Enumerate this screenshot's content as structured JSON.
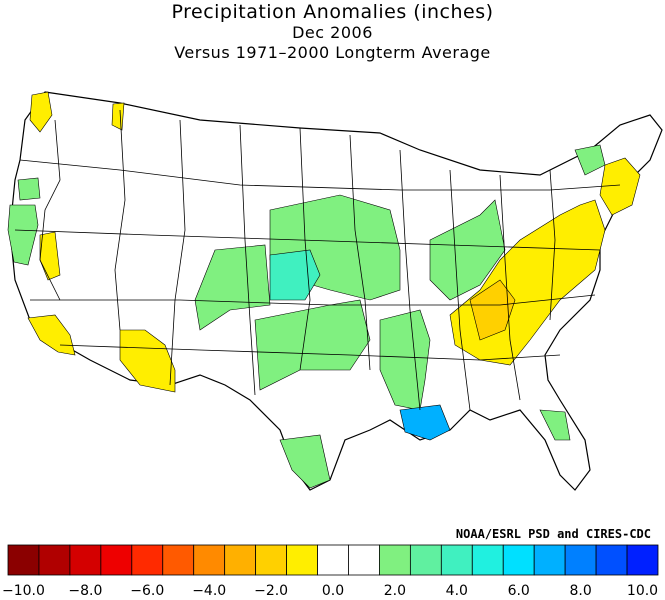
{
  "title": {
    "line1": "Precipitation Anomalies (inches)",
    "line2": "Dec 2006",
    "line3": "Versus 1971–2000 Longterm Average"
  },
  "credit": "NOAA/ESRL PSD and CIRES-CDC",
  "legend": {
    "colors": [
      "#8b0000",
      "#b00000",
      "#d40000",
      "#ee0000",
      "#ff2a00",
      "#ff5a00",
      "#ff8a00",
      "#ffb000",
      "#ffd000",
      "#ffee00",
      "#ffffff",
      "#ffffff",
      "#80f080",
      "#60f0a0",
      "#40f0c0",
      "#20f0e0",
      "#00e0ff",
      "#00b0ff",
      "#0080ff",
      "#0050ff",
      "#0020ff"
    ],
    "ticks": [
      "−10.0",
      "−8.0",
      "−6.0",
      "−4.0",
      "−2.0",
      "0.0",
      "2.0",
      "4.0",
      "6.0",
      "8.0",
      "10.0"
    ]
  },
  "anomaly_regions": [
    {
      "region": "Northwest Washington",
      "class": "dry"
    },
    {
      "region": "Central California coast",
      "class": "dry"
    },
    {
      "region": "Southern California",
      "class": "dry"
    },
    {
      "region": "Southern Arizona",
      "class": "dry"
    },
    {
      "region": "Appalachians / Mid-Atlantic",
      "class": "dry"
    },
    {
      "region": "Tennessee Valley",
      "class": "dry"
    },
    {
      "region": "New England coast",
      "class": "dry"
    },
    {
      "region": "Northern California coast",
      "class": "wet"
    },
    {
      "region": "Central Plains",
      "class": "wet"
    },
    {
      "region": "Western Kansas / Oklahoma",
      "class": "very-wet"
    },
    {
      "region": "Mississippi Valley",
      "class": "wet"
    },
    {
      "region": "South Texas",
      "class": "wet"
    },
    {
      "region": "Southern Louisiana",
      "class": "extreme-wet"
    },
    {
      "region": "Florida",
      "class": "wet"
    },
    {
      "region": "Ohio Valley",
      "class": "wet"
    }
  ],
  "palette": {
    "dry": "#ffee00",
    "dry2": "#ffd000",
    "wet": "#80f080",
    "very-wet": "#40f0c0",
    "extreme-wet": "#00b0ff",
    "border": "#000000"
  }
}
